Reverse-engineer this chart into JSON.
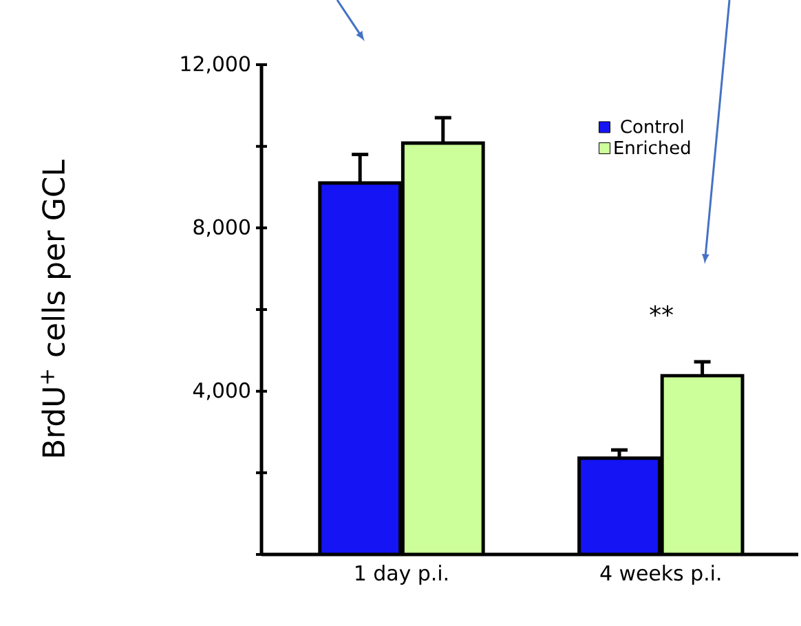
{
  "chart_data": {
    "type": "bar",
    "ylabel": "BrdU$^{+}$ cells per GCL",
    "categories": [
      "1 day p.i.",
      "4 weeks p.i."
    ],
    "series": [
      {
        "name": "Control",
        "color": "#1414f5",
        "values": [
          9100,
          2360
        ],
        "errors": [
          [
            9100,
            9800
          ],
          [
            2360,
            2560
          ]
        ]
      },
      {
        "name": "Enriched",
        "color": "#ccff99",
        "values": [
          10080,
          4380
        ],
        "errors": [
          [
            10080,
            10700
          ],
          [
            4380,
            4720
          ]
        ]
      }
    ],
    "ylim": [
      0,
      12000
    ],
    "yticks": [
      {
        "value": 0,
        "label": null
      },
      {
        "value": 2000,
        "label": null
      },
      {
        "value": 4000,
        "label": "4,000"
      },
      {
        "value": 6000,
        "label": null
      },
      {
        "value": 8000,
        "label": "8,000"
      },
      {
        "value": 10000,
        "label": null
      },
      {
        "value": 12000,
        "label": "12,000"
      }
    ],
    "annotations": [
      "**"
    ],
    "legend": "top right",
    "grid": false
  }
}
